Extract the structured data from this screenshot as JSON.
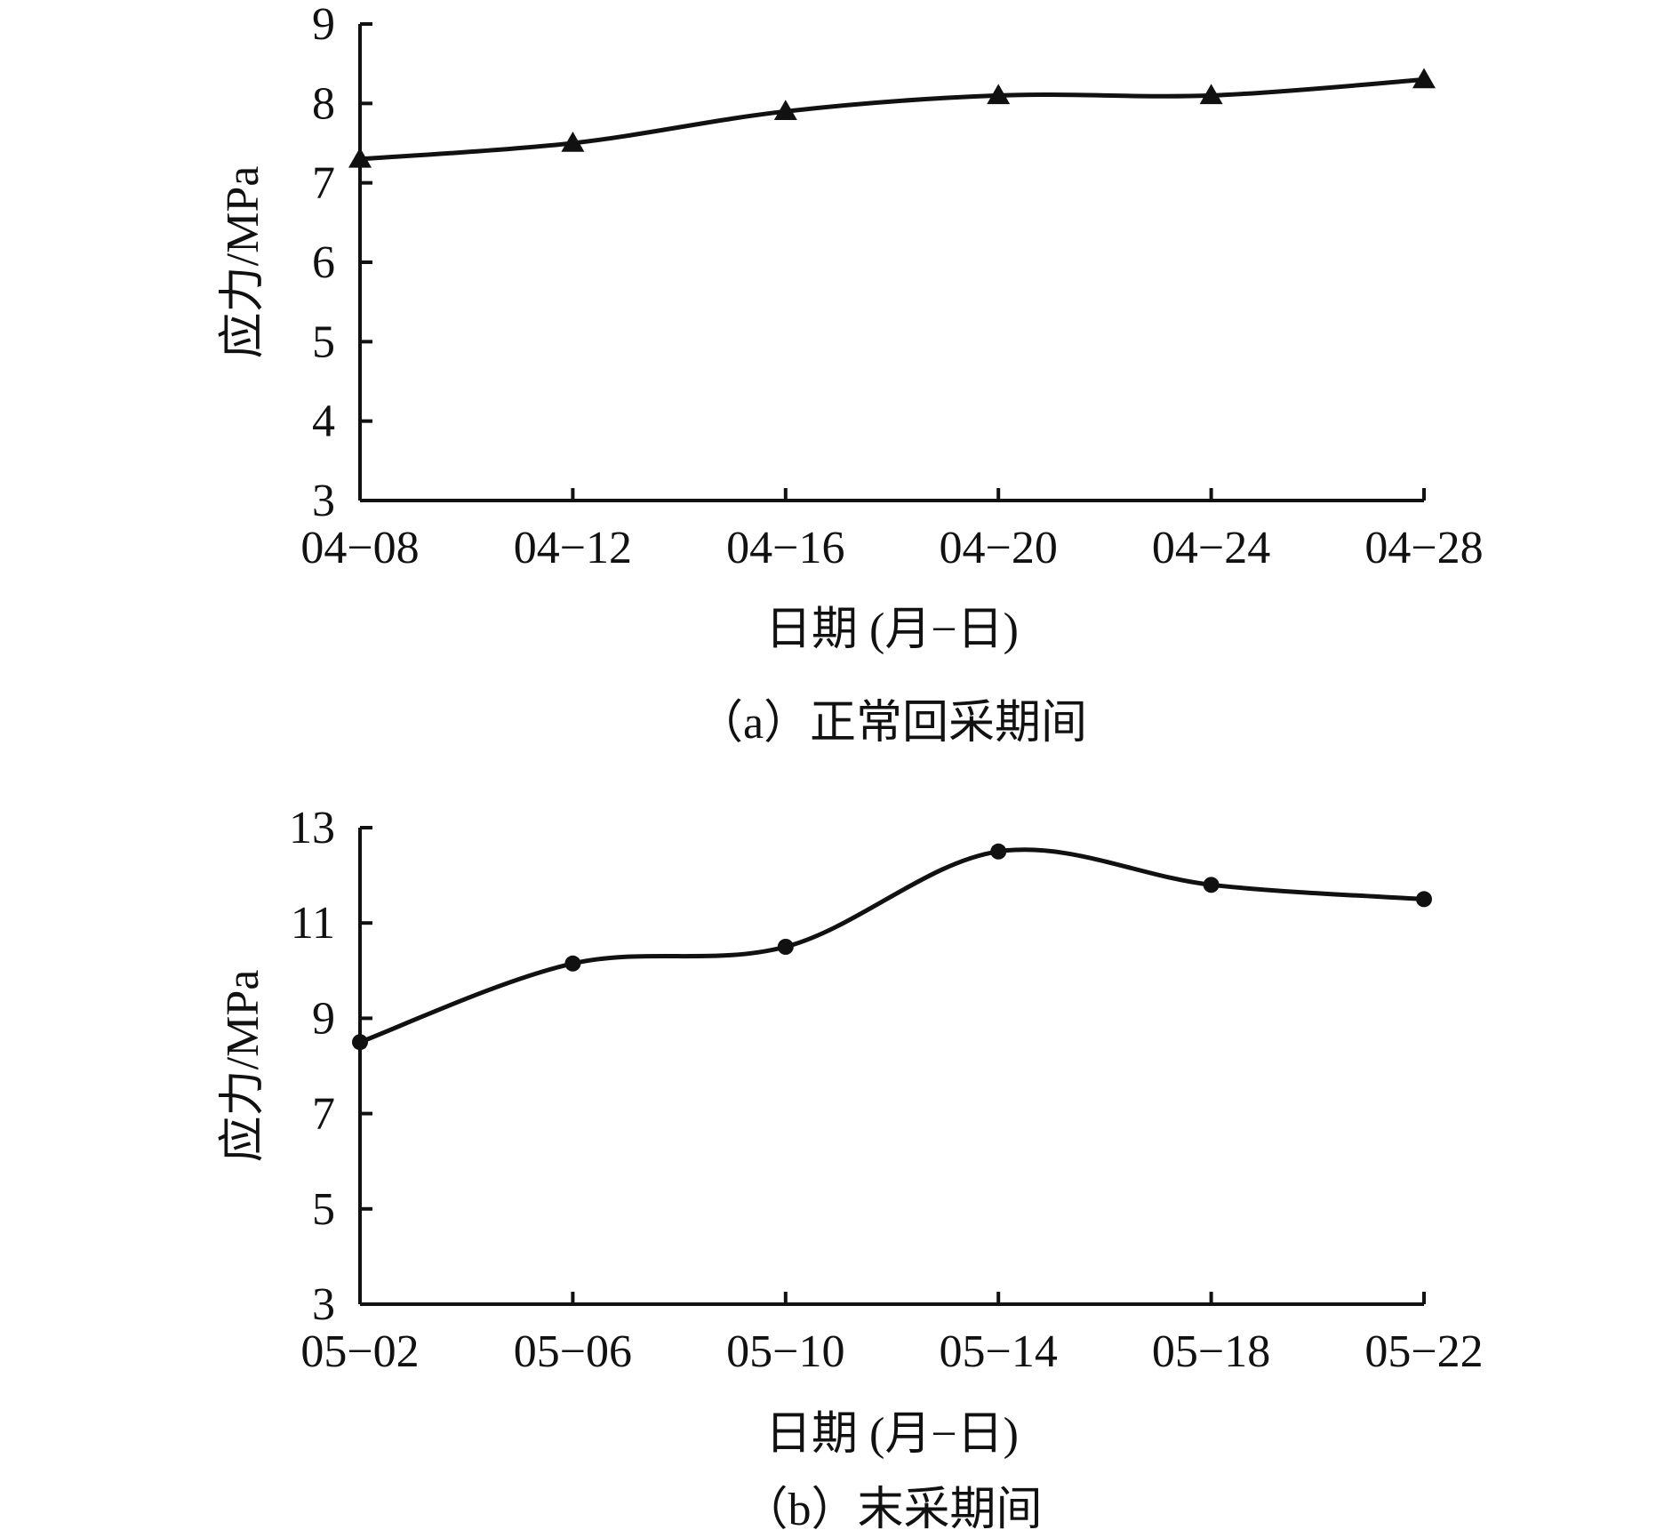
{
  "chart_data": [
    {
      "type": "line",
      "caption": "（a）正常回采期间",
      "xlabel": "日期 (月−日)",
      "ylabel": "应力/MPa",
      "categories": [
        "04−08",
        "04−12",
        "04−16",
        "04−20",
        "04−24",
        "04−28"
      ],
      "ylim": [
        3,
        9
      ],
      "yticks": [
        3,
        4,
        5,
        6,
        7,
        8,
        9
      ],
      "marker": "triangle",
      "series": [
        {
          "values": [
            7.3,
            7.5,
            7.9,
            8.1,
            8.1,
            8.3
          ]
        }
      ],
      "grid": false,
      "legend": "none"
    },
    {
      "type": "line",
      "caption": "（b）末采期间",
      "xlabel": "日期 (月−日)",
      "ylabel": "应力/MPa",
      "categories": [
        "05−02",
        "05−06",
        "05−10",
        "05−14",
        "05−18",
        "05−22"
      ],
      "ylim": [
        3,
        13
      ],
      "yticks": [
        3,
        5,
        7,
        9,
        11,
        13
      ],
      "marker": "circle",
      "series": [
        {
          "values": [
            8.5,
            10.15,
            10.5,
            12.5,
            11.8,
            11.5
          ]
        }
      ],
      "grid": false,
      "legend": "none"
    }
  ],
  "colors": {
    "line": "#111111",
    "background": "#ffffff"
  }
}
